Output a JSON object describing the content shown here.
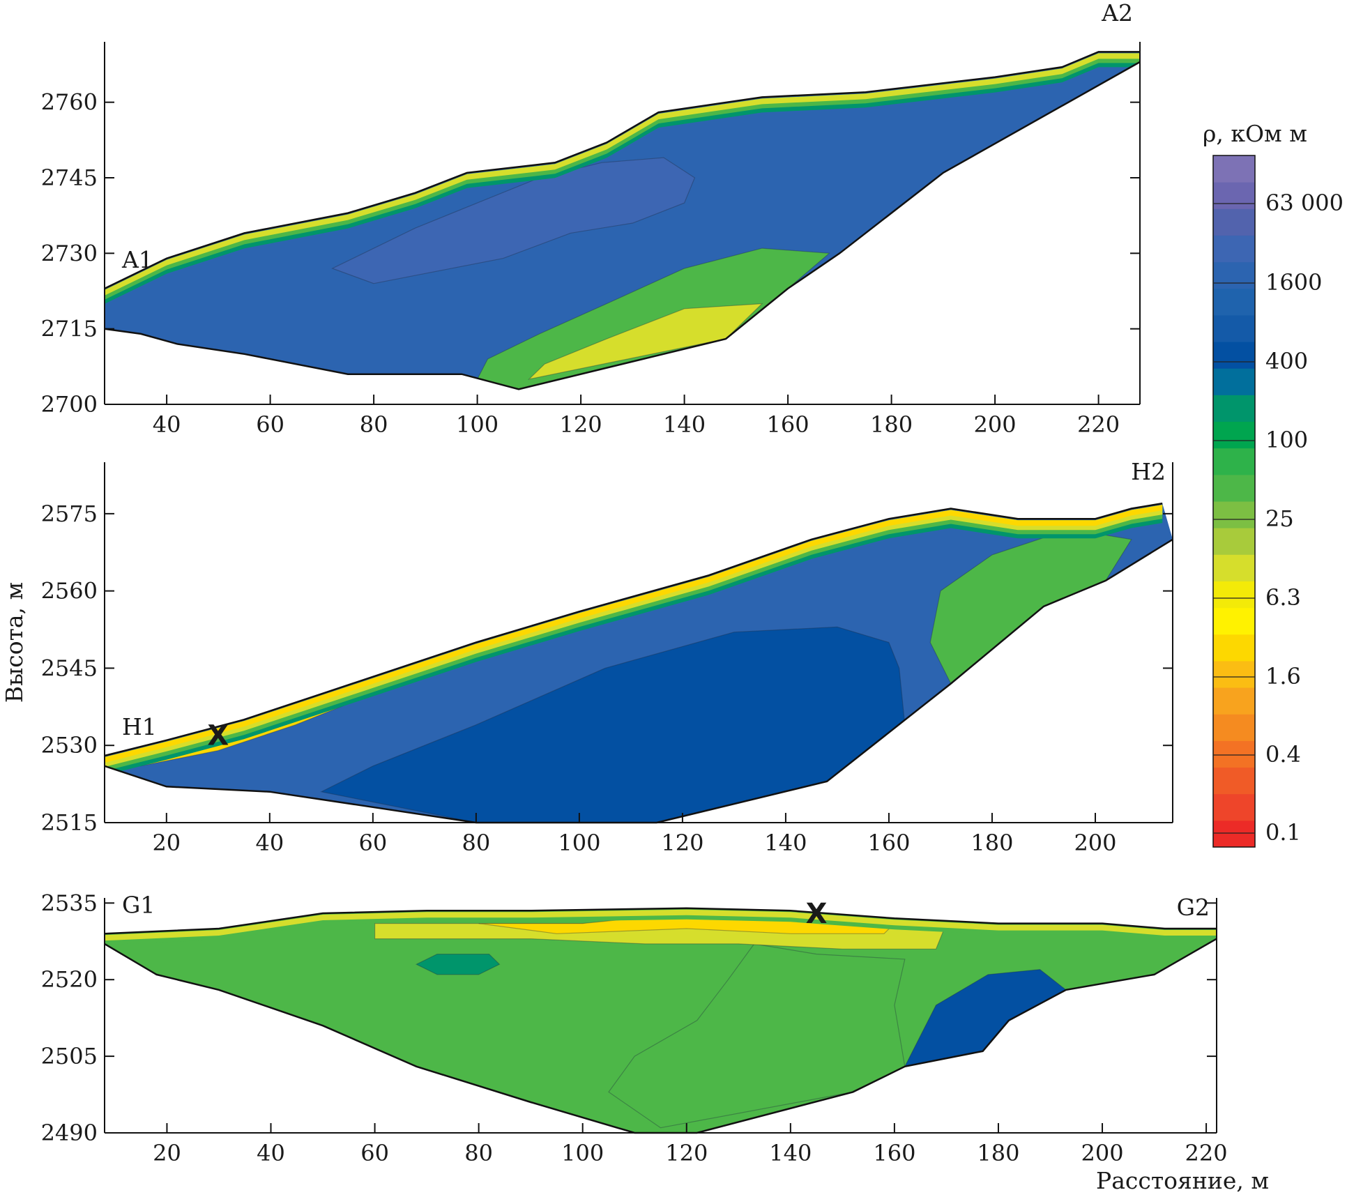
{
  "chart_data": [
    {
      "type": "heatmap",
      "panel": "A",
      "start_label": "A1",
      "end_label": "A2",
      "xlabel": "",
      "ylabel": "",
      "xlim": [
        28,
        228
      ],
      "ylim": [
        2700,
        2772
      ],
      "x_ticks": [
        40,
        60,
        80,
        100,
        120,
        140,
        160,
        180,
        200,
        220
      ],
      "y_ticks": [
        2700,
        2715,
        2730,
        2745,
        2760
      ],
      "x_tick_labels": [
        "40",
        "60",
        "80",
        "100",
        "120",
        "140",
        "160",
        "180",
        "200",
        "220"
      ],
      "y_tick_labels": [
        "2700",
        "2715",
        "2730",
        "2745",
        "2760"
      ],
      "surface": [
        [
          28,
          2723
        ],
        [
          40,
          2729
        ],
        [
          55,
          2734
        ],
        [
          75,
          2738
        ],
        [
          88,
          2742
        ],
        [
          98,
          2746
        ],
        [
          115,
          2748
        ],
        [
          125,
          2752
        ],
        [
          135,
          2758
        ],
        [
          155,
          2761
        ],
        [
          175,
          2762
        ],
        [
          200,
          2765
        ],
        [
          213,
          2767
        ],
        [
          220,
          2770
        ],
        [
          228,
          2770
        ]
      ],
      "bottom": [
        [
          28,
          2715
        ],
        [
          35,
          2714
        ],
        [
          42,
          2712
        ],
        [
          55,
          2710
        ],
        [
          75,
          2706
        ],
        [
          97,
          2706
        ],
        [
          108,
          2703
        ],
        [
          148,
          2713
        ],
        [
          160,
          2723
        ],
        [
          170,
          2730
        ],
        [
          190,
          2746
        ],
        [
          228,
          2768
        ]
      ],
      "zones": [
        {
          "level": "63 000",
          "polygon": [
            [
              123,
              2738
            ],
            [
              130,
              2737
            ],
            [
              136,
              2740
            ],
            [
              138,
              2744
            ],
            [
              134,
              2746
            ],
            [
              126,
              2744
            ],
            [
              121,
              2741
            ]
          ]
        },
        {
          "level": "16 000",
          "polygon": [
            [
              80,
              2724
            ],
            [
              90,
              2726
            ],
            [
              105,
              2729
            ],
            [
              118,
              2734
            ],
            [
              130,
              2736
            ],
            [
              140,
              2740
            ],
            [
              142,
              2745
            ],
            [
              136,
              2749
            ],
            [
              124,
              2748
            ],
            [
              112,
              2745
            ],
            [
              100,
              2740
            ],
            [
              88,
              2735
            ],
            [
              78,
              2730
            ],
            [
              72,
              2727
            ]
          ]
        },
        {
          "level": "100",
          "polygon": [
            [
              100,
              2705
            ],
            [
              108,
              2703
            ],
            [
              148,
              2713
            ],
            [
              160,
              2723
            ],
            [
              168,
              2730
            ],
            [
              155,
              2731
            ],
            [
              140,
              2727
            ],
            [
              125,
              2720
            ],
            [
              112,
              2714
            ],
            [
              102,
              2709
            ]
          ]
        },
        {
          "level": "25",
          "polygon": [
            [
              110,
              2705
            ],
            [
              148,
              2713
            ],
            [
              155,
              2720
            ],
            [
              140,
              2719
            ],
            [
              125,
              2713
            ],
            [
              113,
              2708
            ]
          ]
        }
      ],
      "surface_layer": [
        "25",
        "100",
        "400"
      ]
    },
    {
      "type": "heatmap",
      "panel": "H",
      "start_label": "H1",
      "end_label": "H2",
      "marker": {
        "label": "X",
        "x": 30,
        "y": 2532
      },
      "xlabel": "",
      "ylabel": "Высота, м",
      "xlim": [
        8,
        215
      ],
      "ylim": [
        2515,
        2585
      ],
      "x_ticks": [
        20,
        40,
        60,
        80,
        100,
        120,
        140,
        160,
        180,
        200
      ],
      "y_ticks": [
        2515,
        2530,
        2545,
        2560,
        2575
      ],
      "x_tick_labels": [
        "20",
        "40",
        "60",
        "80",
        "100",
        "120",
        "140",
        "160",
        "180",
        "200"
      ],
      "y_tick_labels": [
        "2515",
        "2530",
        "2545",
        "2560",
        "2575"
      ],
      "surface": [
        [
          8,
          2528
        ],
        [
          20,
          2531
        ],
        [
          35,
          2535
        ],
        [
          50,
          2540
        ],
        [
          80,
          2550
        ],
        [
          100,
          2556
        ],
        [
          125,
          2563
        ],
        [
          145,
          2570
        ],
        [
          160,
          2574
        ],
        [
          172,
          2576
        ],
        [
          185,
          2574
        ],
        [
          200,
          2574
        ],
        [
          207,
          2576
        ],
        [
          213,
          2577
        ]
      ],
      "bottom": [
        [
          8,
          2526
        ],
        [
          20,
          2522
        ],
        [
          40,
          2521
        ],
        [
          60,
          2518
        ],
        [
          80,
          2515
        ],
        [
          115,
          2515
        ],
        [
          148,
          2523
        ],
        [
          172,
          2542
        ],
        [
          190,
          2557
        ],
        [
          202,
          2562
        ],
        [
          215,
          2570
        ]
      ],
      "zones": [
        {
          "level": "1600",
          "polygon": [
            [
              50,
              2521
            ],
            [
              80,
              2515
            ],
            [
              115,
              2515
            ],
            [
              148,
              2523
            ],
            [
              163,
              2535
            ],
            [
              162,
              2545
            ],
            [
              160,
              2550
            ],
            [
              150,
              2553
            ],
            [
              130,
              2552
            ],
            [
              105,
              2545
            ],
            [
              80,
              2534
            ],
            [
              60,
              2526
            ]
          ]
        },
        {
          "level": "100",
          "polygon": [
            [
              172,
              2542
            ],
            [
              190,
              2557
            ],
            [
              202,
              2562
            ],
            [
              207,
              2570
            ],
            [
              195,
              2572
            ],
            [
              180,
              2567
            ],
            [
              170,
              2560
            ],
            [
              168,
              2550
            ]
          ]
        },
        {
          "level": "6.3",
          "polygon": [
            [
              8,
              2527
            ],
            [
              20,
              2530
            ],
            [
              35,
              2534
            ],
            [
              50,
              2538
            ],
            [
              60,
              2542
            ],
            [
              70,
              2545
            ],
            [
              60,
              2540
            ],
            [
              45,
              2534
            ],
            [
              30,
              2529
            ],
            [
              15,
              2526
            ]
          ]
        }
      ],
      "surface_layer": [
        "6.3",
        "25",
        "100",
        "400"
      ]
    },
    {
      "type": "heatmap",
      "panel": "G",
      "start_label": "G1",
      "end_label": "G2",
      "marker": {
        "label": "X",
        "x": 145,
        "y": 2533
      },
      "xlabel": "Расстояние, м",
      "ylabel": "",
      "xlim": [
        8,
        222
      ],
      "ylim": [
        2490,
        2536
      ],
      "x_ticks": [
        20,
        40,
        60,
        80,
        100,
        120,
        140,
        160,
        180,
        200,
        220
      ],
      "y_ticks": [
        2490,
        2505,
        2520,
        2535
      ],
      "x_tick_labels": [
        "20",
        "40",
        "60",
        "80",
        "100",
        "120",
        "140",
        "160",
        "180",
        "200",
        "220"
      ],
      "y_tick_labels": [
        "2490",
        "2505",
        "2520",
        "2535"
      ],
      "surface": [
        [
          8,
          2529
        ],
        [
          30,
          2530
        ],
        [
          50,
          2533
        ],
        [
          70,
          2533.5
        ],
        [
          90,
          2533.5
        ],
        [
          120,
          2534
        ],
        [
          140,
          2533.5
        ],
        [
          160,
          2532
        ],
        [
          180,
          2531
        ],
        [
          200,
          2531
        ],
        [
          212,
          2530
        ],
        [
          222,
          2530
        ]
      ],
      "bottom": [
        [
          8,
          2527
        ],
        [
          18,
          2521
        ],
        [
          30,
          2518
        ],
        [
          50,
          2511
        ],
        [
          68,
          2503
        ],
        [
          90,
          2496
        ],
        [
          110,
          2490
        ],
        [
          122,
          2490
        ],
        [
          152,
          2498
        ],
        [
          162,
          2503
        ],
        [
          177,
          2506
        ],
        [
          182,
          2512
        ],
        [
          193,
          2518
        ],
        [
          210,
          2521
        ],
        [
          222,
          2528
        ]
      ],
      "zones": [
        {
          "level": "100",
          "polygon": [
            [
              115,
              2491
            ],
            [
              152,
              2498
            ],
            [
              162,
              2503
            ],
            [
              160,
              2515
            ],
            [
              162,
              2524
            ],
            [
              145,
              2525
            ],
            [
              133,
              2527
            ],
            [
              128,
              2520
            ],
            [
              122,
              2512
            ],
            [
              110,
              2505
            ],
            [
              105,
              2498
            ]
          ]
        },
        {
          "level": "400",
          "polygon": [
            [
              68,
              2523
            ],
            [
              72,
              2521
            ],
            [
              80,
              2521
            ],
            [
              84,
              2523
            ],
            [
              82,
              2525
            ],
            [
              72,
              2525
            ]
          ]
        },
        {
          "level": "1600",
          "polygon": [
            [
              162,
              2503
            ],
            [
              177,
              2506
            ],
            [
              182,
              2512
            ],
            [
              193,
              2518
            ],
            [
              188,
              2522
            ],
            [
              178,
              2521
            ],
            [
              168,
              2515
            ]
          ]
        },
        {
          "level": "25",
          "polygon": [
            [
              60,
              2531
            ],
            [
              100,
              2531
            ],
            [
              130,
              2531
            ],
            [
              160,
              2531
            ],
            [
              170,
              2531
            ],
            [
              168,
              2526
            ],
            [
              150,
              2526
            ],
            [
              130,
              2527
            ],
            [
              112,
              2527
            ],
            [
              90,
              2528
            ],
            [
              72,
              2528
            ],
            [
              60,
              2528
            ]
          ]
        },
        {
          "level": "6.3",
          "polygon": [
            [
              80,
              2531
            ],
            [
              100,
              2531
            ],
            [
              110,
              2532
            ],
            [
              140,
              2532
            ],
            [
              160,
              2531
            ],
            [
              158,
              2529
            ],
            [
              140,
              2529
            ],
            [
              120,
              2530
            ],
            [
              95,
              2529
            ]
          ]
        }
      ],
      "surface_layer": [
        "25",
        "100"
      ]
    }
  ],
  "legend": {
    "title": "ρ, кОм м",
    "colors": [
      "#ec2b27",
      "#ee452a",
      "#f05b27",
      "#f37224",
      "#f58b20",
      "#f8a31e",
      "#fbbd13",
      "#fdd800",
      "#fff200",
      "#f3ea08",
      "#d6de2c",
      "#a8cb3b",
      "#7cbf43",
      "#4db748",
      "#2eb24a",
      "#00a54f",
      "#00956b",
      "#016f9c",
      "#0350a2",
      "#145aa8",
      "#1f63ad",
      "#2c64b0",
      "#3d66b3",
      "#5263ad",
      "#6b66b0",
      "#7d72b5"
    ],
    "labels": [
      "0.1",
      "0.4",
      "1.6",
      "6.3",
      "25",
      "100",
      "400",
      "1600",
      "63 000"
    ],
    "level_colors": {
      "6.3": "#fdd800",
      "25": "#d6de2c",
      "100": "#4db748",
      "400": "#00956b",
      "1600": "#0350a2",
      "16 000": "#3d66b3",
      "63 000": "#6b66b0"
    }
  }
}
